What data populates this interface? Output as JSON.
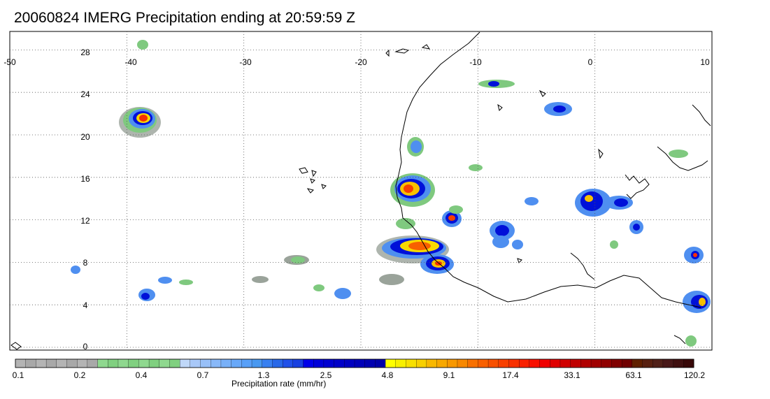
{
  "title": "20060824 IMERG Precipitation ending at 20:59:59 Z",
  "map": {
    "lon_range": [
      -50,
      10
    ],
    "lat_range": [
      0,
      30
    ],
    "lon_ticks": [
      "-50",
      "-40",
      "-30",
      "-20",
      "-10",
      "0",
      "10"
    ],
    "lon_tick_values": [
      -50,
      -40,
      -30,
      -20,
      -10,
      0,
      10
    ],
    "lat_ticks": [
      "28",
      "24",
      "20",
      "16",
      "12",
      "8",
      "4",
      "0"
    ],
    "lat_tick_values": [
      28,
      24,
      20,
      16,
      12,
      8,
      4,
      0
    ],
    "grid": "dotted"
  },
  "colorbar": {
    "title": "Precipitation rate (mm/hr)",
    "labels": [
      "0.1",
      "0.2",
      "0.4",
      "0.7",
      "1.3",
      "2.5",
      "4.8",
      "9.1",
      "17.4",
      "33.1",
      "63.1",
      "120.2"
    ],
    "colors": [
      "#b4b4b4",
      "#a8a8a8",
      "#b4b4b4",
      "#a8a8a8",
      "#b4b4b4",
      "#a8a8a8",
      "#b4b4b4",
      "#a8a8a8",
      "#8fd88f",
      "#80d080",
      "#8fd88f",
      "#80d080",
      "#8fd88f",
      "#80d080",
      "#8fd88f",
      "#80d080",
      "#c0d8f8",
      "#a8c8f8",
      "#98c0f8",
      "#88b8f8",
      "#78b0f8",
      "#68a8f8",
      "#58a0f8",
      "#4898f0",
      "#3880f0",
      "#2868e8",
      "#2050e8",
      "#1840e0",
      "#0000e8",
      "#0000d8",
      "#0000d0",
      "#0000c8",
      "#0000c0",
      "#0000b8",
      "#0000b0",
      "#0000a8",
      "#ffff00",
      "#f8f000",
      "#f8e000",
      "#f8d000",
      "#f8b800",
      "#f8a800",
      "#f89800",
      "#f88800",
      "#f87000",
      "#f86000",
      "#f85000",
      "#f84000",
      "#f83000",
      "#f82000",
      "#f81000",
      "#f00000",
      "#e00000",
      "#d00000",
      "#c00000",
      "#b00000",
      "#a00000",
      "#900000",
      "#800000",
      "#700000",
      "#602000",
      "#582010",
      "#502018",
      "#481818",
      "#401010",
      "#380808"
    ]
  }
}
